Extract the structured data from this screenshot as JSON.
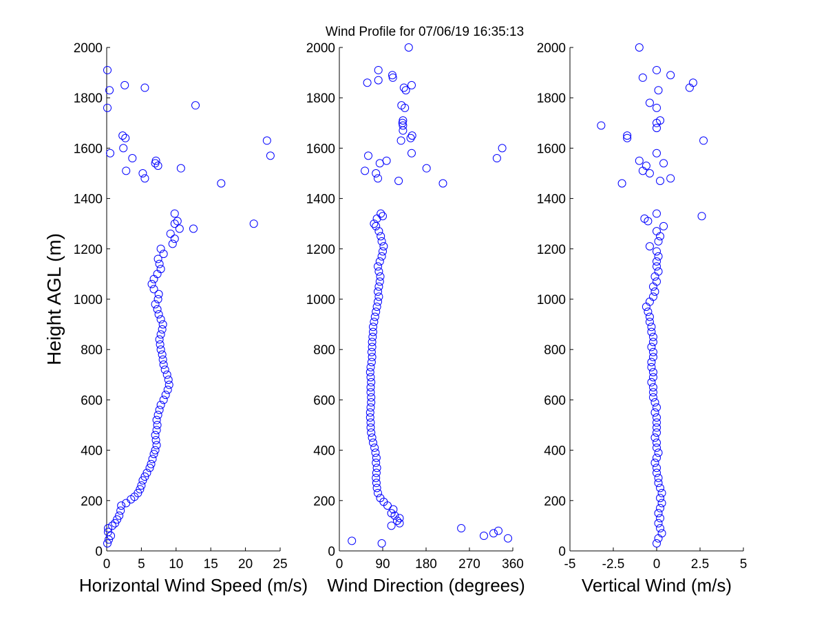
{
  "chart_data": {
    "type": "scatter",
    "title": "Wind Profile for  07/06/19 16:35:13",
    "ylabel": "Height AGL (m)",
    "marker_color": "#0000ff",
    "ylim": [
      0,
      2000
    ],
    "yticks": [
      0,
      200,
      400,
      600,
      800,
      1000,
      1200,
      1400,
      1600,
      1800,
      2000
    ],
    "panels": [
      {
        "name": "speed",
        "xlabel": "Horizontal Wind Speed (m/s)",
        "xlim": [
          0,
          25
        ],
        "xticks": [
          0,
          5,
          10,
          15,
          20,
          25
        ],
        "xticklabels": [
          "0",
          "5",
          "10",
          "15",
          "20",
          "25"
        ],
        "points": [
          [
            0.1,
            30
          ],
          [
            0.3,
            45
          ],
          [
            0.6,
            60
          ],
          [
            0.2,
            75
          ],
          [
            0.2,
            90
          ],
          [
            0.8,
            100
          ],
          [
            1.2,
            110
          ],
          [
            1.5,
            125
          ],
          [
            1.8,
            140
          ],
          [
            2.0,
            160
          ],
          [
            2.1,
            180
          ],
          [
            2.8,
            190
          ],
          [
            3.5,
            205
          ],
          [
            4.0,
            215
          ],
          [
            4.5,
            230
          ],
          [
            4.8,
            245
          ],
          [
            5.0,
            260
          ],
          [
            5.2,
            280
          ],
          [
            5.5,
            295
          ],
          [
            5.8,
            310
          ],
          [
            6.2,
            330
          ],
          [
            6.4,
            345
          ],
          [
            6.6,
            365
          ],
          [
            6.8,
            385
          ],
          [
            7.0,
            400
          ],
          [
            7.2,
            420
          ],
          [
            7.1,
            440
          ],
          [
            7.0,
            460
          ],
          [
            7.2,
            480
          ],
          [
            7.3,
            500
          ],
          [
            7.2,
            520
          ],
          [
            7.4,
            540
          ],
          [
            7.6,
            560
          ],
          [
            7.8,
            580
          ],
          [
            8.2,
            600
          ],
          [
            8.5,
            620
          ],
          [
            8.8,
            640
          ],
          [
            9.0,
            660
          ],
          [
            8.9,
            680
          ],
          [
            8.7,
            700
          ],
          [
            8.4,
            720
          ],
          [
            8.2,
            740
          ],
          [
            8.1,
            760
          ],
          [
            8.0,
            780
          ],
          [
            7.8,
            800
          ],
          [
            7.7,
            820
          ],
          [
            7.6,
            840
          ],
          [
            7.8,
            860
          ],
          [
            8.0,
            880
          ],
          [
            8.1,
            900
          ],
          [
            7.8,
            920
          ],
          [
            7.5,
            940
          ],
          [
            7.3,
            960
          ],
          [
            7.0,
            980
          ],
          [
            7.4,
            1000
          ],
          [
            7.5,
            1020
          ],
          [
            6.8,
            1040
          ],
          [
            6.5,
            1060
          ],
          [
            6.8,
            1080
          ],
          [
            7.3,
            1100
          ],
          [
            7.8,
            1120
          ],
          [
            7.6,
            1140
          ],
          [
            7.4,
            1160
          ],
          [
            8.2,
            1180
          ],
          [
            7.8,
            1200
          ],
          [
            9.5,
            1220
          ],
          [
            9.8,
            1240
          ],
          [
            9.2,
            1260
          ],
          [
            10.5,
            1280
          ],
          [
            12.5,
            1280
          ],
          [
            9.8,
            1300
          ],
          [
            10.2,
            1310
          ],
          [
            21.2,
            1300
          ],
          [
            9.8,
            1340
          ],
          [
            16.5,
            1460
          ],
          [
            5.5,
            1480
          ],
          [
            5.2,
            1500
          ],
          [
            2.8,
            1510
          ],
          [
            10.7,
            1520
          ],
          [
            7.4,
            1530
          ],
          [
            7.0,
            1540
          ],
          [
            7.1,
            1550
          ],
          [
            3.7,
            1560
          ],
          [
            23.6,
            1570
          ],
          [
            0.5,
            1580
          ],
          [
            2.4,
            1600
          ],
          [
            23.1,
            1630
          ],
          [
            2.7,
            1640
          ],
          [
            2.3,
            1650
          ],
          [
            12.8,
            1770
          ],
          [
            0.1,
            1760
          ],
          [
            0.4,
            1830
          ],
          [
            5.5,
            1840
          ],
          [
            2.6,
            1850
          ],
          [
            0.1,
            1910
          ]
        ]
      },
      {
        "name": "direction",
        "xlabel": "Wind Direction (degrees)",
        "xlim": [
          0,
          360
        ],
        "xticks": [
          0,
          90,
          180,
          270,
          360
        ],
        "xticklabels": [
          "0",
          "90",
          "180",
          "270",
          "360"
        ],
        "points": [
          [
            26,
            40
          ],
          [
            88,
            30
          ],
          [
            350,
            50
          ],
          [
            300,
            60
          ],
          [
            320,
            70
          ],
          [
            330,
            80
          ],
          [
            253,
            90
          ],
          [
            108,
            100
          ],
          [
            125,
            110
          ],
          [
            120,
            120
          ],
          [
            125,
            130
          ],
          [
            115,
            140
          ],
          [
            108,
            150
          ],
          [
            112,
            165
          ],
          [
            100,
            180
          ],
          [
            92,
            195
          ],
          [
            85,
            210
          ],
          [
            80,
            230
          ],
          [
            78,
            250
          ],
          [
            77,
            270
          ],
          [
            76,
            290
          ],
          [
            77,
            310
          ],
          [
            78,
            330
          ],
          [
            76,
            350
          ],
          [
            77,
            370
          ],
          [
            75,
            390
          ],
          [
            73,
            410
          ],
          [
            70,
            430
          ],
          [
            68,
            450
          ],
          [
            66,
            470
          ],
          [
            65,
            490
          ],
          [
            65,
            510
          ],
          [
            64,
            530
          ],
          [
            64,
            550
          ],
          [
            65,
            570
          ],
          [
            66,
            590
          ],
          [
            66,
            610
          ],
          [
            65,
            630
          ],
          [
            65,
            650
          ],
          [
            66,
            670
          ],
          [
            65,
            690
          ],
          [
            64,
            710
          ],
          [
            65,
            730
          ],
          [
            67,
            750
          ],
          [
            68,
            770
          ],
          [
            67,
            790
          ],
          [
            68,
            810
          ],
          [
            68,
            830
          ],
          [
            69,
            850
          ],
          [
            70,
            870
          ],
          [
            70,
            890
          ],
          [
            72,
            910
          ],
          [
            74,
            930
          ],
          [
            76,
            950
          ],
          [
            78,
            970
          ],
          [
            80,
            990
          ],
          [
            82,
            1010
          ],
          [
            80,
            1030
          ],
          [
            82,
            1050
          ],
          [
            84,
            1070
          ],
          [
            85,
            1090
          ],
          [
            82,
            1110
          ],
          [
            80,
            1130
          ],
          [
            84,
            1150
          ],
          [
            88,
            1170
          ],
          [
            90,
            1190
          ],
          [
            92,
            1210
          ],
          [
            88,
            1230
          ],
          [
            86,
            1250
          ],
          [
            82,
            1270
          ],
          [
            76,
            1290
          ],
          [
            72,
            1300
          ],
          [
            78,
            1320
          ],
          [
            90,
            1330
          ],
          [
            86,
            1340
          ],
          [
            181,
            1520
          ],
          [
            215,
            1460
          ],
          [
            123,
            1470
          ],
          [
            80,
            1480
          ],
          [
            76,
            1500
          ],
          [
            53,
            1510
          ],
          [
            84,
            1540
          ],
          [
            98,
            1550
          ],
          [
            60,
            1570
          ],
          [
            327,
            1560
          ],
          [
            150,
            1580
          ],
          [
            338,
            1600
          ],
          [
            128,
            1630
          ],
          [
            148,
            1640
          ],
          [
            151,
            1650
          ],
          [
            132,
            1670
          ],
          [
            132,
            1690
          ],
          [
            131,
            1700
          ],
          [
            132,
            1710
          ],
          [
            136,
            1760
          ],
          [
            129,
            1770
          ],
          [
            138,
            1830
          ],
          [
            134,
            1840
          ],
          [
            58,
            1860
          ],
          [
            150,
            1850
          ],
          [
            81,
            1870
          ],
          [
            111,
            1880
          ],
          [
            110,
            1890
          ],
          [
            81,
            1910
          ],
          [
            144,
            2000
          ]
        ]
      },
      {
        "name": "vertical",
        "xlabel": "Vertical Wind (m/s)",
        "xlim": [
          -5,
          5
        ],
        "xticks": [
          -5,
          -2.5,
          0,
          2.5,
          5
        ],
        "xticklabels": [
          "-5",
          "-2.5",
          "0",
          "2.5",
          "5"
        ],
        "points": [
          [
            0.0,
            30
          ],
          [
            0.1,
            50
          ],
          [
            0.3,
            70
          ],
          [
            0.2,
            90
          ],
          [
            0.1,
            110
          ],
          [
            0.2,
            130
          ],
          [
            0.1,
            150
          ],
          [
            0.2,
            170
          ],
          [
            0.3,
            190
          ],
          [
            0.2,
            210
          ],
          [
            0.3,
            230
          ],
          [
            0.2,
            250
          ],
          [
            0.1,
            270
          ],
          [
            0.1,
            290
          ],
          [
            0.0,
            310
          ],
          [
            0.0,
            330
          ],
          [
            -0.1,
            350
          ],
          [
            0.0,
            370
          ],
          [
            0.1,
            390
          ],
          [
            0.0,
            410
          ],
          [
            0.0,
            430
          ],
          [
            -0.1,
            450
          ],
          [
            0.0,
            470
          ],
          [
            0.0,
            490
          ],
          [
            0.0,
            510
          ],
          [
            0.0,
            530
          ],
          [
            -0.1,
            550
          ],
          [
            0.0,
            570
          ],
          [
            -0.1,
            590
          ],
          [
            -0.2,
            610
          ],
          [
            -0.2,
            630
          ],
          [
            -0.2,
            650
          ],
          [
            -0.3,
            670
          ],
          [
            -0.2,
            690
          ],
          [
            -0.2,
            710
          ],
          [
            -0.3,
            730
          ],
          [
            -0.3,
            750
          ],
          [
            -0.2,
            770
          ],
          [
            -0.2,
            790
          ],
          [
            -0.3,
            810
          ],
          [
            -0.2,
            830
          ],
          [
            -0.2,
            850
          ],
          [
            -0.3,
            870
          ],
          [
            -0.3,
            890
          ],
          [
            -0.4,
            910
          ],
          [
            -0.4,
            930
          ],
          [
            -0.5,
            950
          ],
          [
            -0.6,
            970
          ],
          [
            -0.4,
            990
          ],
          [
            -0.2,
            1010
          ],
          [
            -0.1,
            1030
          ],
          [
            -0.2,
            1050
          ],
          [
            0.0,
            1070
          ],
          [
            -0.1,
            1090
          ],
          [
            0.1,
            1110
          ],
          [
            0.0,
            1130
          ],
          [
            0.0,
            1150
          ],
          [
            0.1,
            1170
          ],
          [
            0.0,
            1190
          ],
          [
            -0.4,
            1210
          ],
          [
            0.1,
            1230
          ],
          [
            0.2,
            1250
          ],
          [
            0.0,
            1270
          ],
          [
            0.4,
            1290
          ],
          [
            -0.5,
            1310
          ],
          [
            -0.7,
            1320
          ],
          [
            0.0,
            1340
          ],
          [
            2.6,
            1330
          ],
          [
            -2.0,
            1460
          ],
          [
            0.2,
            1470
          ],
          [
            0.8,
            1480
          ],
          [
            -0.4,
            1500
          ],
          [
            -0.8,
            1510
          ],
          [
            -0.6,
            1530
          ],
          [
            0.4,
            1540
          ],
          [
            -1.0,
            1550
          ],
          [
            0.0,
            1580
          ],
          [
            2.7,
            1630
          ],
          [
            -1.7,
            1640
          ],
          [
            -1.7,
            1650
          ],
          [
            0.0,
            1680
          ],
          [
            -3.2,
            1690
          ],
          [
            0.0,
            1700
          ],
          [
            0.2,
            1710
          ],
          [
            0.0,
            1760
          ],
          [
            -0.4,
            1780
          ],
          [
            1.9,
            1840
          ],
          [
            0.1,
            1830
          ],
          [
            2.1,
            1860
          ],
          [
            -0.8,
            1880
          ],
          [
            0.8,
            1890
          ],
          [
            0.0,
            1910
          ],
          [
            -1.0,
            2000
          ]
        ]
      }
    ]
  }
}
